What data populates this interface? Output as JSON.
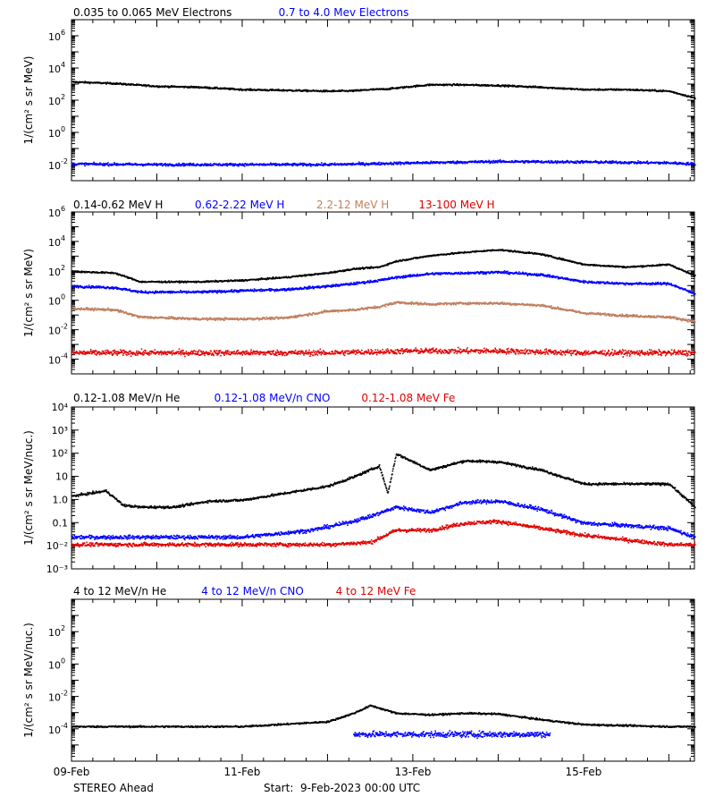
{
  "colors": {
    "black": "#000000",
    "blue": "#0000ff",
    "tan": "#c08060",
    "red": "#e00000",
    "background": "#ffffff"
  },
  "footer": {
    "spacecraft": "STEREO Ahead",
    "start": "Start:  9-Feb-2023 00:00 UTC"
  },
  "chart_data": [
    {
      "type": "scatter",
      "legend": [
        {
          "text": "0.035 to 0.065 MeV Electrons",
          "color": "#000000"
        },
        {
          "text": "0.7 to 4.0 Mev Electrons",
          "color": "#0000ff"
        }
      ],
      "ylabel": "1/(cm² s sr MeV)",
      "yscale": "log",
      "ylim": [
        0.001,
        10000000
      ],
      "yticks": [
        {
          "label": "10",
          "exp": "-2"
        },
        {
          "label": "10",
          "exp": "0"
        },
        {
          "label": "10",
          "exp": "2"
        },
        {
          "label": "10",
          "exp": "4"
        },
        {
          "label": "10",
          "exp": "6"
        }
      ],
      "xlim_days": [
        0,
        7.3
      ],
      "series": [
        {
          "name": "0.035 to 0.065 MeV Electrons",
          "color": "#000000",
          "x": [
            0,
            0.5,
            1.0,
            1.5,
            2.0,
            2.5,
            3.0,
            3.3,
            3.5,
            3.7,
            4.0,
            4.2,
            4.5,
            5.0,
            5.5,
            6.0,
            6.5,
            7.0,
            7.3
          ],
          "y": [
            1500,
            1200,
            800,
            700,
            500,
            450,
            400,
            420,
            500,
            550,
            800,
            1000,
            1000,
            900,
            700,
            500,
            500,
            400,
            150
          ]
        },
        {
          "name": "0.7 to 4.0 Mev Electrons",
          "color": "#0000ff",
          "x": [
            0,
            1,
            2,
            3,
            4,
            5,
            6,
            7,
            7.3
          ],
          "y": [
            0.012,
            0.011,
            0.011,
            0.011,
            0.014,
            0.017,
            0.016,
            0.014,
            0.012
          ]
        }
      ]
    },
    {
      "type": "scatter",
      "legend": [
        {
          "text": "0.14-0.62 MeV H",
          "color": "#000000"
        },
        {
          "text": "0.62-2.22 MeV H",
          "color": "#0000ff"
        },
        {
          "text": "2.2-12 MeV H",
          "color": "#c08060"
        },
        {
          "text": "13-100 MeV H",
          "color": "#e00000"
        }
      ],
      "ylabel": "1/(cm² s sr MeV)",
      "yscale": "log",
      "ylim": [
        1e-05,
        1000000
      ],
      "yticks": [
        {
          "label": "10",
          "exp": "-4"
        },
        {
          "label": "10",
          "exp": "-2"
        },
        {
          "label": "10",
          "exp": "0"
        },
        {
          "label": "10",
          "exp": "2"
        },
        {
          "label": "10",
          "exp": "4"
        },
        {
          "label": "10",
          "exp": "6"
        }
      ],
      "xlim_days": [
        0,
        7.3
      ],
      "series": [
        {
          "name": "0.14-0.62 MeV H",
          "color": "#000000",
          "x": [
            0,
            0.5,
            0.8,
            1.5,
            2.0,
            2.5,
            3.0,
            3.3,
            3.6,
            3.8,
            4.2,
            4.6,
            5.0,
            5.5,
            6.0,
            6.5,
            7.0,
            7.3
          ],
          "y": [
            100,
            80,
            20,
            20,
            25,
            40,
            80,
            150,
            200,
            500,
            1200,
            2000,
            3000,
            1500,
            300,
            200,
            300,
            50
          ]
        },
        {
          "name": "0.62-2.22 MeV H",
          "color": "#0000ff",
          "x": [
            0,
            0.5,
            0.8,
            1.5,
            2.0,
            2.5,
            3.0,
            3.3,
            3.6,
            3.8,
            4.2,
            4.6,
            5.0,
            5.5,
            6.0,
            6.5,
            7.0,
            7.3
          ],
          "y": [
            10,
            8,
            4,
            4,
            5,
            6,
            10,
            15,
            25,
            40,
            70,
            80,
            90,
            60,
            20,
            15,
            15,
            3
          ]
        },
        {
          "name": "2.2-12 MeV H",
          "color": "#c08060",
          "x": [
            0,
            0.5,
            0.8,
            1.5,
            2.0,
            2.5,
            3.0,
            3.3,
            3.6,
            3.8,
            4.2,
            4.6,
            5.0,
            5.5,
            6.0,
            6.5,
            7.0,
            7.3
          ],
          "y": [
            0.3,
            0.25,
            0.08,
            0.06,
            0.06,
            0.07,
            0.2,
            0.25,
            0.4,
            0.8,
            0.6,
            0.7,
            0.7,
            0.5,
            0.15,
            0.1,
            0.08,
            0.04
          ]
        },
        {
          "name": "13-100 MeV H",
          "color": "#e00000",
          "x": [
            0,
            1,
            2,
            3,
            4,
            5,
            6,
            7,
            7.3
          ],
          "y": [
            0.0003,
            0.0003,
            0.0003,
            0.0003,
            0.0004,
            0.0004,
            0.0003,
            0.0003,
            0.0003
          ]
        }
      ]
    },
    {
      "type": "scatter",
      "legend": [
        {
          "text": "0.12-1.08 MeV/n He",
          "color": "#000000"
        },
        {
          "text": "0.12-1.08 MeV/n CNO",
          "color": "#0000ff"
        },
        {
          "text": "0.12-1.08 MeV Fe",
          "color": "#e00000"
        }
      ],
      "ylabel": "1/(cm² s sr MeV/nuc.)",
      "yscale": "log",
      "ylim": [
        0.001,
        10000
      ],
      "yticks": [
        {
          "label": "10",
          "exp": "-3"
        },
        {
          "label": "10",
          "exp": "-2"
        },
        {
          "label": "10",
          "exp": "-1"
        },
        {
          "label": "10",
          "exp": "0"
        },
        {
          "label": "10",
          "exp": "1"
        },
        {
          "label": "10",
          "exp": "2"
        },
        {
          "label": "10",
          "exp": "3"
        },
        {
          "label": "10",
          "exp": "4"
        }
      ],
      "yticklabels_override": [
        "10⁻³",
        "10⁻²",
        "0.1",
        "1.0",
        "10",
        "10²",
        "10³",
        "10⁴"
      ],
      "xlim_days": [
        0,
        7.3
      ],
      "series": [
        {
          "name": "0.12-1.08 MeV/n He",
          "color": "#000000",
          "x": [
            0,
            0.4,
            0.6,
            0.8,
            1.2,
            1.6,
            2.0,
            2.5,
            3.0,
            3.3,
            3.6,
            3.7,
            3.8,
            4.2,
            4.6,
            5.0,
            5.5,
            6.0,
            6.5,
            7.0,
            7.3
          ],
          "y": [
            1.5,
            2.5,
            0.6,
            0.5,
            0.5,
            0.9,
            1.0,
            2.0,
            4.0,
            10,
            30,
            2.0,
            100,
            20,
            50,
            45,
            20,
            5,
            5,
            5,
            0.5
          ]
        },
        {
          "name": "0.12-1.08 MeV/n CNO",
          "color": "#0000ff",
          "x": [
            0,
            1,
            2,
            2.8,
            3.2,
            3.5,
            3.8,
            4.2,
            4.6,
            5.0,
            5.5,
            6.0,
            6.5,
            7.0,
            7.3
          ],
          "y": [
            0.025,
            0.025,
            0.025,
            0.05,
            0.1,
            0.2,
            0.5,
            0.3,
            0.8,
            0.9,
            0.4,
            0.1,
            0.08,
            0.06,
            0.025
          ]
        },
        {
          "name": "0.12-1.08 MeV Fe",
          "color": "#e00000",
          "x": [
            0,
            1,
            2,
            3,
            3.5,
            3.8,
            4.2,
            4.6,
            5.0,
            5.5,
            6.0,
            7.0,
            7.3
          ],
          "y": [
            0.012,
            0.012,
            0.012,
            0.012,
            0.015,
            0.05,
            0.05,
            0.1,
            0.12,
            0.06,
            0.03,
            0.012,
            0.012
          ]
        }
      ]
    },
    {
      "type": "scatter",
      "legend": [
        {
          "text": "4 to 12 MeV/n He",
          "color": "#000000"
        },
        {
          "text": "4 to 12 MeV/n CNO",
          "color": "#0000ff"
        },
        {
          "text": "4 to 12 MeV Fe",
          "color": "#e00000"
        }
      ],
      "ylabel": "1/(cm² s sr MeV/nuc.)",
      "yscale": "log",
      "ylim": [
        1e-06,
        10000
      ],
      "yticks": [
        {
          "label": "10",
          "exp": "-4"
        },
        {
          "label": "10",
          "exp": "-2"
        },
        {
          "label": "10",
          "exp": "0"
        },
        {
          "label": "10",
          "exp": "2"
        }
      ],
      "xlim_days": [
        0,
        7.3
      ],
      "series": [
        {
          "name": "4 to 12 MeV/n He",
          "color": "#000000",
          "x": [
            0,
            1,
            2,
            3.0,
            3.3,
            3.5,
            3.8,
            4.2,
            4.6,
            5.0,
            5.5,
            6.0,
            7.0,
            7.3
          ],
          "y": [
            0.00015,
            0.00015,
            0.00015,
            0.0003,
            0.001,
            0.003,
            0.001,
            0.0008,
            0.001,
            0.0009,
            0.0004,
            0.0002,
            0.00015,
            0.00015
          ]
        },
        {
          "name": "4 to 12 MeV/n CNO",
          "color": "#0000ff",
          "x": [
            3.3,
            3.6,
            4.0,
            4.4,
            4.8,
            5.2,
            5.6
          ],
          "y": [
            5e-05,
            5e-05,
            5e-05,
            5e-05,
            5e-05,
            5e-05,
            5e-05
          ]
        }
      ],
      "xticklabels": [
        "09-Feb",
        "11-Feb",
        "13-Feb",
        "15-Feb"
      ]
    }
  ]
}
